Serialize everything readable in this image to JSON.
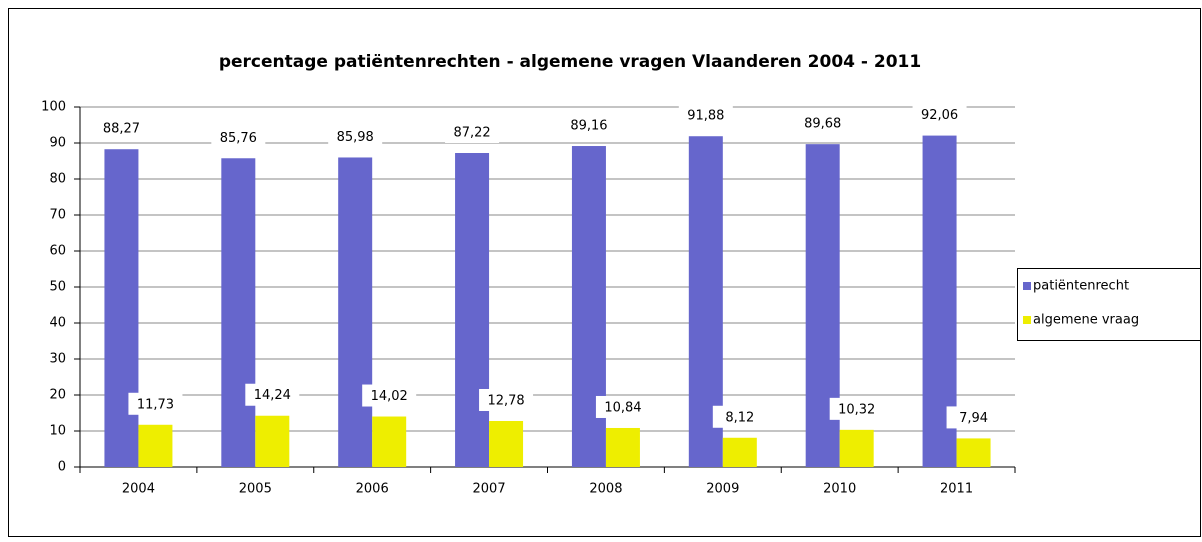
{
  "chart_data": {
    "type": "bar",
    "title": "percentage patiëntenrechten - algemene vragen Vlaanderen 2004 - 2011",
    "categories": [
      "2004",
      "2005",
      "2006",
      "2007",
      "2008",
      "2009",
      "2010",
      "2011"
    ],
    "series": [
      {
        "name": "patiëntenrecht",
        "color": "#6666cc",
        "values": [
          88.27,
          85.76,
          85.98,
          87.22,
          89.16,
          91.88,
          89.68,
          92.06
        ],
        "value_labels": [
          "88,27",
          "85,76",
          "85,98",
          "87,22",
          "89,16",
          "91,88",
          "89,68",
          "92,06"
        ]
      },
      {
        "name": "algemene vraag",
        "color": "#eeee00",
        "values": [
          11.73,
          14.24,
          14.02,
          12.78,
          10.84,
          8.12,
          10.32,
          7.94
        ],
        "value_labels": [
          "11,73",
          "14,24",
          "14,02",
          "12,78",
          "10,84",
          "8,12",
          "10,32",
          "7,94"
        ]
      }
    ],
    "ylim": [
      0,
      100
    ],
    "yticks": [
      0,
      10,
      20,
      30,
      40,
      50,
      60,
      70,
      80,
      90,
      100
    ],
    "grid": true,
    "legend": "right"
  }
}
